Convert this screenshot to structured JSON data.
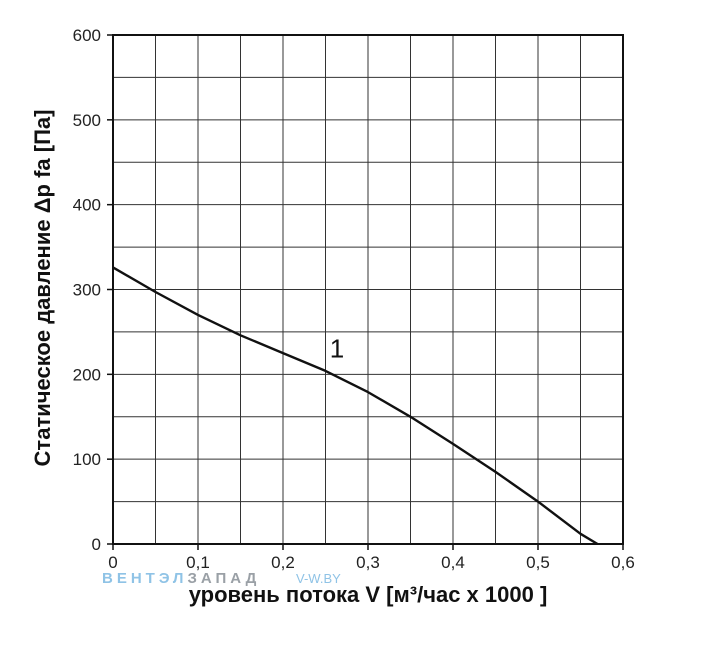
{
  "chart_data": {
    "type": "line",
    "xlabel": "уровень потока  V [м³/час x 1000 ]",
    "ylabel": "Статическое давление  Δp fa [Па]",
    "xlim": [
      0,
      0.6
    ],
    "ylim": [
      0,
      600
    ],
    "x_ticks": [
      "0",
      "0,1",
      "0,2",
      "0,3",
      "0,4",
      "0,5",
      "0,6"
    ],
    "y_ticks": [
      "0",
      "100",
      "200",
      "300",
      "400",
      "500",
      "600"
    ],
    "grid": true,
    "series": [
      {
        "name": "1",
        "x": [
          0,
          0.05,
          0.1,
          0.15,
          0.2,
          0.25,
          0.3,
          0.35,
          0.4,
          0.45,
          0.5,
          0.55,
          0.57
        ],
        "y": [
          326,
          297,
          270,
          246,
          225,
          204,
          179,
          150,
          118,
          85,
          50,
          12,
          0
        ],
        "color": "#111111"
      }
    ]
  },
  "watermark": {
    "brand_light": "ВЕНТЭЛ",
    "brand_dark": "ЗАПАД",
    "site": "V-W.BY",
    "color_light": "#8fc3e6",
    "color_dark": "#9aa0a6"
  }
}
